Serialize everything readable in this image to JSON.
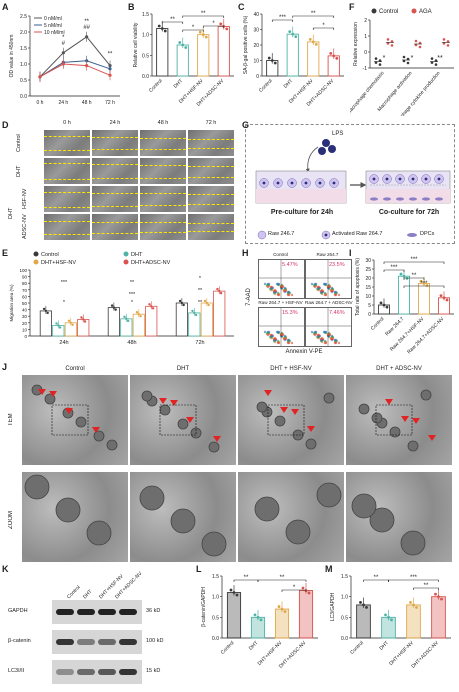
{
  "panels": {
    "A": {
      "label": "A",
      "ylabel": "OD value in 450nm",
      "legend": [
        "0 nM/ml",
        "5 nM/ml",
        "10 nM/ml"
      ],
      "x_ticks": [
        "0 h",
        "24 h",
        "48 h",
        "72 h"
      ],
      "y_ticks": [
        "0.0",
        "0.5",
        "1.0",
        "1.5",
        "2.0",
        "2.5"
      ],
      "sig": [
        "*",
        "#",
        "**",
        "##",
        "**"
      ]
    },
    "B": {
      "label": "B",
      "ylabel": "Relative cell viability",
      "y_ticks": [
        "0.0",
        "0.5",
        "1.0",
        "1.5"
      ],
      "cats": [
        "Control",
        "DHT",
        "DHT+HSF-NV",
        "DHT+ADSC-NV"
      ],
      "sig": [
        "**",
        "**",
        "*",
        "*"
      ]
    },
    "C": {
      "label": "C",
      "ylabel": "SA-β-gal positive cells (%)",
      "y_ticks": [
        "0",
        "10",
        "20",
        "30",
        "40"
      ],
      "cats": [
        "Control",
        "DHT",
        "DHT+HSF-NV",
        "DHT+ADSC-NV"
      ],
      "sig": [
        "***",
        "**",
        "*"
      ]
    },
    "F": {
      "label": "F",
      "ylabel": "Relative expression",
      "legend": [
        "Control",
        "AGA"
      ],
      "cats": [
        "Macrophage chemotaxis",
        "Macrophage activation",
        "Macrophage cytokine production"
      ],
      "sig": [
        "*",
        "*",
        "**"
      ],
      "y_ticks": [
        "-1",
        "0",
        "1",
        "2"
      ]
    },
    "D": {
      "label": "D",
      "cols": [
        "0 h",
        "24 h",
        "48 h",
        "72 h"
      ],
      "rows": [
        "Control",
        "DHT",
        "HSF-NV",
        "ADSC-NV"
      ],
      "group": "DHT"
    },
    "E": {
      "label": "E",
      "ylabel": "Migration area (%)",
      "legend": [
        "Control",
        "DHT",
        "DHT+HSF-NV",
        "DHT+ADSC-NV"
      ],
      "x_ticks": [
        "24h",
        "48h",
        "72h"
      ],
      "y_ticks": [
        "0",
        "10",
        "20",
        "30",
        "40",
        "50",
        "60",
        "70",
        "80",
        "90",
        "100"
      ],
      "sig": [
        "***",
        "*",
        "**",
        "***",
        "*",
        "*",
        "**",
        "**"
      ]
    },
    "G": {
      "label": "G",
      "lps": "LPS",
      "pre": "Pre-culture for 24h",
      "co": "Co-culture for 72h",
      "legend": [
        "Raw 246.7",
        "Activated Raw 264.7",
        "DPCs"
      ]
    },
    "H": {
      "label": "H",
      "quads": [
        {
          "name": "Control",
          "pct": "5.47%"
        },
        {
          "name": "Raw 264.7",
          "pct": "23.5%"
        },
        {
          "name": "Raw 264.7 + HSF-NV",
          "pct": "15.3%"
        },
        {
          "name": "Raw 264.7 + ADSC-NV",
          "pct": "7.46%"
        }
      ],
      "ylabel": "7-AAD",
      "xlabel": "Annexin V-PE"
    },
    "I": {
      "label": "I",
      "ylabel": "Total rate of apoptosis (%)",
      "y_ticks": [
        "0",
        "5",
        "10",
        "15",
        "20",
        "25",
        "30"
      ],
      "cats": [
        "Control",
        "Raw 264.7",
        "Raw 264.7+HSF-NV",
        "Raw 264.7+ADSC-NV"
      ],
      "sig": [
        "***",
        "***",
        "**",
        "***"
      ]
    },
    "J": {
      "label": "J",
      "cols": [
        "Control",
        "DHT",
        "DHT + HSF-NV",
        "DHT + ADSC-NV"
      ],
      "rows": [
        "TEM",
        "ZOOM"
      ]
    },
    "K": {
      "label": "K",
      "cols": [
        "Control",
        "DHT",
        "DHT+HSF-NV",
        "DHT+ADSC-NV"
      ],
      "bands": [
        {
          "name": "GAPDH",
          "kd": "36 kD"
        },
        {
          "name": "β-catenin",
          "kd": "100 kD"
        },
        {
          "name": "LC3I/II",
          "kd": "15 kD"
        }
      ]
    },
    "L": {
      "label": "L",
      "ylabel": "β-catenin/GAPDH",
      "y_ticks": [
        "0.0",
        "0.5",
        "1.0",
        "1.5"
      ],
      "cats": [
        "Control",
        "DHT",
        "DHT+HSF-NV",
        "DHT+ADSC-NV"
      ],
      "sig": [
        "**",
        "**",
        "*"
      ]
    },
    "M": {
      "label": "M",
      "ylabel": "LC3/GAPDH",
      "y_ticks": [
        "0.0",
        "0.5",
        "1.0",
        "1.5"
      ],
      "cats": [
        "Control",
        "DHT",
        "DHT+HSF-NV",
        "DHT+ADSC-NV"
      ],
      "sig": [
        "**",
        "***",
        "**"
      ]
    }
  },
  "colors": {
    "c0": "#555555",
    "c5": "#3a5f8c",
    "c10": "#d9534f",
    "control": "#3a3a3a",
    "dht": "#4fb3a6",
    "hsf": "#e0a84a",
    "adsc": "#d9534f",
    "flow_red": "#d6336c"
  },
  "chart_data": [
    {
      "type": "line",
      "title": "",
      "xlabel": "",
      "ylabel": "OD value in 450nm",
      "x": [
        "0 h",
        "24 h",
        "48 h",
        "72 h"
      ],
      "ylim": [
        0,
        2.5
      ],
      "series": [
        {
          "name": "0 nM/ml",
          "values": [
            0.6,
            1.35,
            1.85,
            0.95
          ]
        },
        {
          "name": "5 nM/ml",
          "values": [
            0.6,
            1.05,
            1.1,
            0.85
          ]
        },
        {
          "name": "10 nM/ml",
          "values": [
            0.6,
            1.0,
            0.95,
            0.65
          ]
        }
      ]
    },
    {
      "type": "bar",
      "ylabel": "Relative cell viability",
      "categories": [
        "Control",
        "DHT",
        "DHT+HSF-NV",
        "DHT+ADSC-NV"
      ],
      "values": [
        1.15,
        0.75,
        1.0,
        1.2
      ],
      "ylim": [
        0,
        1.5
      ]
    },
    {
      "type": "bar",
      "ylabel": "SA-β-gal positive cells (%)",
      "categories": [
        "Control",
        "DHT",
        "DHT+HSF-NV",
        "DHT+ADSC-NV"
      ],
      "values": [
        10,
        27,
        22,
        13
      ],
      "ylim": [
        0,
        40
      ]
    },
    {
      "type": "scatter",
      "ylabel": "Relative expression",
      "categories": [
        "Macrophage chemotaxis",
        "Macrophage activation",
        "Macrophage cytokine production"
      ],
      "series": [
        {
          "name": "Control",
          "values": [
            -0.6,
            -0.5,
            -0.6
          ]
        },
        {
          "name": "AGA",
          "values": [
            0.6,
            0.5,
            0.6
          ]
        }
      ],
      "ylim": [
        -1,
        2
      ]
    },
    {
      "type": "bar",
      "ylabel": "Migration area (%)",
      "categories": [
        "24h",
        "48h",
        "72h"
      ],
      "series": [
        {
          "name": "Control",
          "values": [
            38,
            43,
            50
          ]
        },
        {
          "name": "DHT",
          "values": [
            16,
            26,
            35
          ]
        },
        {
          "name": "DHT+HSF-NV",
          "values": [
            20,
            33,
            50
          ]
        },
        {
          "name": "DHT+ADSC-NV",
          "values": [
            25,
            45,
            68
          ]
        }
      ],
      "ylim": [
        0,
        100
      ]
    },
    {
      "type": "bar",
      "ylabel": "Total rate of apoptosis (%)",
      "categories": [
        "Control",
        "Raw 264.7",
        "Raw 264.7+HSF-NV",
        "Raw 264.7+ADSC-NV"
      ],
      "values": [
        5,
        21,
        17,
        9
      ],
      "ylim": [
        0,
        30
      ]
    },
    {
      "type": "bar",
      "ylabel": "β-catenin/GAPDH",
      "categories": [
        "Control",
        "DHT",
        "DHT+HSF-NV",
        "DHT+ADSC-NV"
      ],
      "values": [
        1.1,
        0.5,
        0.7,
        1.15
      ],
      "ylim": [
        0,
        1.5
      ]
    },
    {
      "type": "bar",
      "ylabel": "LC3/GAPDH",
      "categories": [
        "Control",
        "DHT",
        "DHT+HSF-NV",
        "DHT+ADSC-NV"
      ],
      "values": [
        0.8,
        0.5,
        0.8,
        1.0
      ],
      "ylim": [
        0,
        1.5
      ]
    }
  ]
}
